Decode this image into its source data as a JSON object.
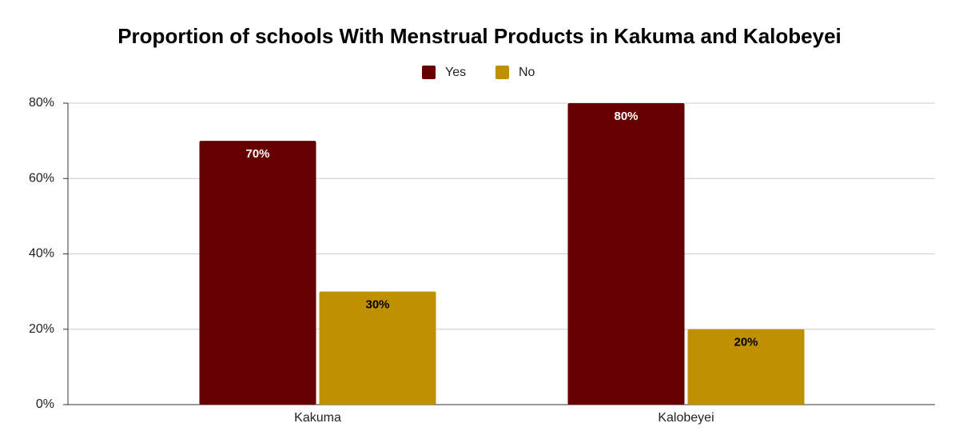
{
  "chart_data": {
    "type": "bar",
    "title": "Proportion of schools With Menstrual Products in Kakuma and Kalobeyei",
    "categories": [
      "Kakuma",
      "Kalobeyei"
    ],
    "series": [
      {
        "name": "Yes",
        "color": "#660000",
        "values": [
          70,
          80
        ],
        "value_labels": [
          "70%",
          "80%"
        ]
      },
      {
        "name": "No",
        "color": "#bf9000",
        "values": [
          30,
          20
        ],
        "value_labels": [
          "30%",
          "20%"
        ]
      }
    ],
    "ylim": [
      0,
      80
    ],
    "yticks": [
      {
        "value": 0,
        "label": "0%"
      },
      {
        "value": 20,
        "label": "20%"
      },
      {
        "value": 40,
        "label": "40%"
      },
      {
        "value": 60,
        "label": "60%"
      },
      {
        "value": 80,
        "label": "80%"
      }
    ],
    "grid": true,
    "legend": "top"
  }
}
